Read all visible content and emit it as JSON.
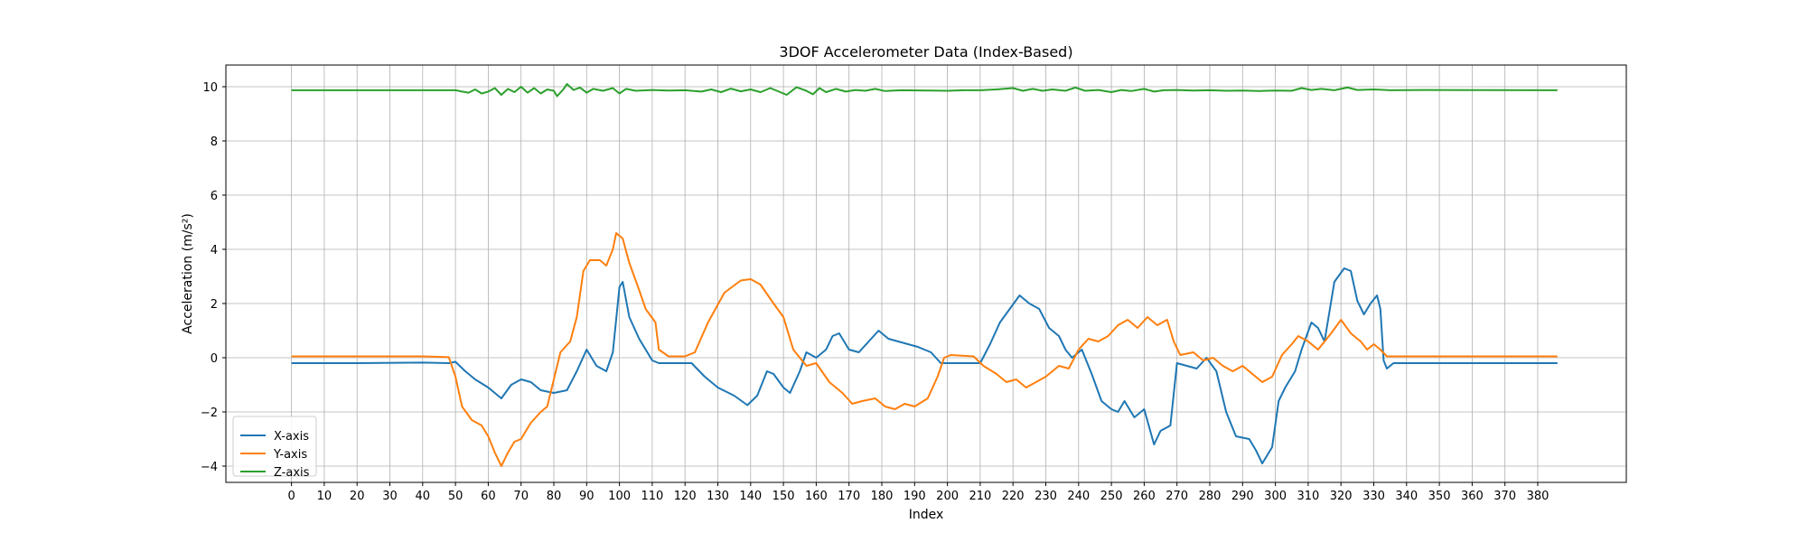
{
  "chart_data": {
    "type": "line",
    "title": "3DOF Accelerometer Data (Index-Based)",
    "xlabel": "Index",
    "ylabel": "Acceleration (m/s²)",
    "xlim": [
      -20,
      407
    ],
    "ylim": [
      -4.6,
      10.8
    ],
    "x_ticks": [
      0,
      10,
      20,
      30,
      40,
      50,
      60,
      70,
      80,
      90,
      100,
      110,
      120,
      130,
      140,
      150,
      160,
      170,
      180,
      190,
      200,
      210,
      220,
      230,
      240,
      250,
      260,
      270,
      280,
      290,
      300,
      310,
      320,
      330,
      340,
      350,
      360,
      370,
      380
    ],
    "y_ticks": [
      -4,
      -2,
      0,
      2,
      4,
      6,
      8,
      10
    ],
    "grid": true,
    "legend_position": "lower-left",
    "series": [
      {
        "name": "X-axis",
        "color": "#1f77b4",
        "points": [
          [
            0,
            -0.2
          ],
          [
            20,
            -0.2
          ],
          [
            40,
            -0.18
          ],
          [
            48,
            -0.2
          ],
          [
            50,
            -0.15
          ],
          [
            53,
            -0.5
          ],
          [
            56,
            -0.8
          ],
          [
            60,
            -1.1
          ],
          [
            64,
            -1.5
          ],
          [
            67,
            -1.0
          ],
          [
            70,
            -0.8
          ],
          [
            73,
            -0.9
          ],
          [
            76,
            -1.2
          ],
          [
            80,
            -1.3
          ],
          [
            84,
            -1.2
          ],
          [
            87,
            -0.5
          ],
          [
            90,
            0.3
          ],
          [
            93,
            -0.3
          ],
          [
            96,
            -0.5
          ],
          [
            98,
            0.2
          ],
          [
            100,
            2.6
          ],
          [
            101,
            2.8
          ],
          [
            103,
            1.5
          ],
          [
            106,
            0.7
          ],
          [
            110,
            -0.1
          ],
          [
            112,
            -0.2
          ],
          [
            122,
            -0.2
          ],
          [
            126,
            -0.7
          ],
          [
            130,
            -1.1
          ],
          [
            135,
            -1.4
          ],
          [
            139,
            -1.75
          ],
          [
            142,
            -1.4
          ],
          [
            145,
            -0.5
          ],
          [
            147,
            -0.6
          ],
          [
            150,
            -1.1
          ],
          [
            152,
            -1.3
          ],
          [
            155,
            -0.5
          ],
          [
            157,
            0.2
          ],
          [
            160,
            0.0
          ],
          [
            163,
            0.3
          ],
          [
            165,
            0.8
          ],
          [
            167,
            0.9
          ],
          [
            170,
            0.3
          ],
          [
            173,
            0.2
          ],
          [
            176,
            0.6
          ],
          [
            179,
            1.0
          ],
          [
            182,
            0.7
          ],
          [
            185,
            0.6
          ],
          [
            188,
            0.5
          ],
          [
            191,
            0.4
          ],
          [
            195,
            0.2
          ],
          [
            198,
            -0.2
          ],
          [
            210,
            -0.2
          ],
          [
            213,
            0.5
          ],
          [
            216,
            1.3
          ],
          [
            219,
            1.8
          ],
          [
            222,
            2.3
          ],
          [
            225,
            2.0
          ],
          [
            228,
            1.8
          ],
          [
            231,
            1.1
          ],
          [
            234,
            0.8
          ],
          [
            236,
            0.3
          ],
          [
            238,
            0.0
          ],
          [
            241,
            0.3
          ],
          [
            244,
            -0.6
          ],
          [
            247,
            -1.6
          ],
          [
            250,
            -1.9
          ],
          [
            252,
            -2.0
          ],
          [
            254,
            -1.6
          ],
          [
            257,
            -2.2
          ],
          [
            260,
            -1.9
          ],
          [
            263,
            -3.2
          ],
          [
            265,
            -2.7
          ],
          [
            268,
            -2.5
          ],
          [
            270,
            -0.2
          ],
          [
            273,
            -0.3
          ],
          [
            276,
            -0.4
          ],
          [
            279,
            0.0
          ],
          [
            282,
            -0.5
          ],
          [
            285,
            -2.0
          ],
          [
            288,
            -2.9
          ],
          [
            292,
            -3.0
          ],
          [
            294,
            -3.4
          ],
          [
            296,
            -3.9
          ],
          [
            299,
            -3.3
          ],
          [
            301,
            -1.6
          ],
          [
            303,
            -1.1
          ],
          [
            306,
            -0.5
          ],
          [
            308,
            0.3
          ],
          [
            311,
            1.3
          ],
          [
            313,
            1.1
          ],
          [
            315,
            0.6
          ],
          [
            318,
            2.8
          ],
          [
            321,
            3.3
          ],
          [
            323,
            3.2
          ],
          [
            325,
            2.1
          ],
          [
            327,
            1.6
          ],
          [
            329,
            2.0
          ],
          [
            331,
            2.3
          ],
          [
            332,
            1.8
          ],
          [
            333,
            -0.1
          ],
          [
            334,
            -0.4
          ],
          [
            336,
            -0.2
          ],
          [
            386,
            -0.2
          ]
        ]
      },
      {
        "name": "Y-axis",
        "color": "#ff7f0e",
        "points": [
          [
            0,
            0.05
          ],
          [
            20,
            0.05
          ],
          [
            40,
            0.05
          ],
          [
            48,
            0.02
          ],
          [
            50,
            -0.7
          ],
          [
            52,
            -1.8
          ],
          [
            55,
            -2.3
          ],
          [
            58,
            -2.5
          ],
          [
            60,
            -2.9
          ],
          [
            62,
            -3.5
          ],
          [
            64,
            -4.0
          ],
          [
            66,
            -3.5
          ],
          [
            68,
            -3.1
          ],
          [
            70,
            -3.0
          ],
          [
            73,
            -2.4
          ],
          [
            76,
            -2.0
          ],
          [
            78,
            -1.8
          ],
          [
            80,
            -0.8
          ],
          [
            82,
            0.2
          ],
          [
            85,
            0.6
          ],
          [
            87,
            1.5
          ],
          [
            89,
            3.2
          ],
          [
            91,
            3.6
          ],
          [
            94,
            3.6
          ],
          [
            96,
            3.4
          ],
          [
            98,
            4.0
          ],
          [
            99,
            4.6
          ],
          [
            101,
            4.4
          ],
          [
            103,
            3.5
          ],
          [
            106,
            2.5
          ],
          [
            108,
            1.8
          ],
          [
            111,
            1.3
          ],
          [
            112,
            0.3
          ],
          [
            115,
            0.05
          ],
          [
            120,
            0.05
          ],
          [
            123,
            0.2
          ],
          [
            127,
            1.3
          ],
          [
            132,
            2.4
          ],
          [
            137,
            2.85
          ],
          [
            140,
            2.9
          ],
          [
            143,
            2.7
          ],
          [
            147,
            2.0
          ],
          [
            150,
            1.5
          ],
          [
            153,
            0.3
          ],
          [
            157,
            -0.3
          ],
          [
            160,
            -0.2
          ],
          [
            164,
            -0.9
          ],
          [
            168,
            -1.3
          ],
          [
            171,
            -1.7
          ],
          [
            174,
            -1.6
          ],
          [
            178,
            -1.5
          ],
          [
            181,
            -1.8
          ],
          [
            184,
            -1.9
          ],
          [
            187,
            -1.7
          ],
          [
            190,
            -1.8
          ],
          [
            194,
            -1.5
          ],
          [
            197,
            -0.7
          ],
          [
            199,
            0.0
          ],
          [
            201,
            0.1
          ],
          [
            208,
            0.05
          ],
          [
            211,
            -0.3
          ],
          [
            215,
            -0.6
          ],
          [
            218,
            -0.9
          ],
          [
            221,
            -0.8
          ],
          [
            224,
            -1.1
          ],
          [
            227,
            -0.9
          ],
          [
            230,
            -0.7
          ],
          [
            234,
            -0.3
          ],
          [
            237,
            -0.4
          ],
          [
            240,
            0.3
          ],
          [
            243,
            0.7
          ],
          [
            246,
            0.6
          ],
          [
            249,
            0.8
          ],
          [
            252,
            1.2
          ],
          [
            255,
            1.4
          ],
          [
            258,
            1.1
          ],
          [
            261,
            1.5
          ],
          [
            264,
            1.2
          ],
          [
            267,
            1.4
          ],
          [
            269,
            0.6
          ],
          [
            271,
            0.1
          ],
          [
            275,
            0.2
          ],
          [
            278,
            -0.1
          ],
          [
            281,
            0.0
          ],
          [
            284,
            -0.3
          ],
          [
            287,
            -0.5
          ],
          [
            290,
            -0.3
          ],
          [
            293,
            -0.6
          ],
          [
            296,
            -0.9
          ],
          [
            299,
            -0.7
          ],
          [
            302,
            0.1
          ],
          [
            305,
            0.5
          ],
          [
            307,
            0.8
          ],
          [
            310,
            0.6
          ],
          [
            313,
            0.3
          ],
          [
            317,
            0.9
          ],
          [
            320,
            1.4
          ],
          [
            323,
            0.9
          ],
          [
            326,
            0.6
          ],
          [
            328,
            0.3
          ],
          [
            330,
            0.5
          ],
          [
            332,
            0.3
          ],
          [
            334,
            0.05
          ],
          [
            340,
            0.05
          ],
          [
            386,
            0.05
          ]
        ]
      },
      {
        "name": "Z-axis",
        "color": "#2ca02c",
        "points": [
          [
            0,
            9.87
          ],
          [
            40,
            9.87
          ],
          [
            50,
            9.87
          ],
          [
            52,
            9.82
          ],
          [
            54,
            9.78
          ],
          [
            56,
            9.9
          ],
          [
            58,
            9.75
          ],
          [
            60,
            9.82
          ],
          [
            62,
            9.95
          ],
          [
            64,
            9.7
          ],
          [
            66,
            9.92
          ],
          [
            68,
            9.8
          ],
          [
            70,
            10.0
          ],
          [
            72,
            9.78
          ],
          [
            74,
            9.95
          ],
          [
            76,
            9.75
          ],
          [
            78,
            9.9
          ],
          [
            80,
            9.85
          ],
          [
            81,
            9.65
          ],
          [
            83,
            9.92
          ],
          [
            84,
            10.1
          ],
          [
            86,
            9.88
          ],
          [
            88,
            9.97
          ],
          [
            90,
            9.78
          ],
          [
            92,
            9.92
          ],
          [
            95,
            9.85
          ],
          [
            98,
            9.95
          ],
          [
            100,
            9.75
          ],
          [
            102,
            9.92
          ],
          [
            105,
            9.85
          ],
          [
            110,
            9.88
          ],
          [
            115,
            9.86
          ],
          [
            120,
            9.87
          ],
          [
            125,
            9.82
          ],
          [
            128,
            9.9
          ],
          [
            131,
            9.8
          ],
          [
            134,
            9.93
          ],
          [
            137,
            9.83
          ],
          [
            140,
            9.9
          ],
          [
            143,
            9.8
          ],
          [
            146,
            9.95
          ],
          [
            149,
            9.8
          ],
          [
            151,
            9.7
          ],
          [
            154,
            9.98
          ],
          [
            157,
            9.85
          ],
          [
            159,
            9.72
          ],
          [
            161,
            9.95
          ],
          [
            163,
            9.8
          ],
          [
            166,
            9.92
          ],
          [
            169,
            9.82
          ],
          [
            172,
            9.88
          ],
          [
            175,
            9.85
          ],
          [
            178,
            9.92
          ],
          [
            181,
            9.84
          ],
          [
            186,
            9.87
          ],
          [
            195,
            9.86
          ],
          [
            200,
            9.85
          ],
          [
            205,
            9.87
          ],
          [
            210,
            9.87
          ],
          [
            215,
            9.9
          ],
          [
            220,
            9.95
          ],
          [
            223,
            9.85
          ],
          [
            226,
            9.92
          ],
          [
            229,
            9.85
          ],
          [
            232,
            9.9
          ],
          [
            236,
            9.85
          ],
          [
            239,
            9.97
          ],
          [
            242,
            9.85
          ],
          [
            246,
            9.88
          ],
          [
            250,
            9.8
          ],
          [
            253,
            9.88
          ],
          [
            256,
            9.84
          ],
          [
            260,
            9.92
          ],
          [
            263,
            9.82
          ],
          [
            266,
            9.87
          ],
          [
            270,
            9.88
          ],
          [
            275,
            9.86
          ],
          [
            280,
            9.87
          ],
          [
            285,
            9.85
          ],
          [
            290,
            9.86
          ],
          [
            295,
            9.84
          ],
          [
            300,
            9.86
          ],
          [
            305,
            9.85
          ],
          [
            308,
            9.95
          ],
          [
            311,
            9.88
          ],
          [
            314,
            9.92
          ],
          [
            318,
            9.87
          ],
          [
            322,
            9.97
          ],
          [
            325,
            9.88
          ],
          [
            330,
            9.9
          ],
          [
            335,
            9.87
          ],
          [
            345,
            9.88
          ],
          [
            386,
            9.87
          ]
        ]
      }
    ]
  }
}
